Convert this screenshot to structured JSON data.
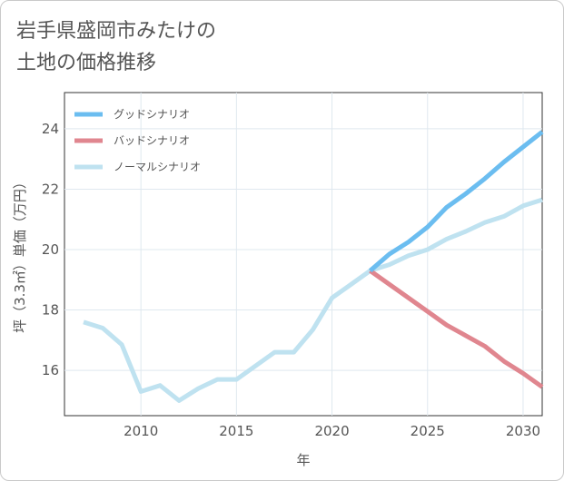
{
  "title": "岩手県盛岡市みたけの\n土地の価格推移",
  "chart_data": {
    "type": "line",
    "title": "岩手県盛岡市みたけの\n土地の価格推移",
    "xlabel": "年",
    "ylabel": "坪（3.3㎡）単価（万円）",
    "xlim": [
      2006,
      2031
    ],
    "ylim": [
      14.5,
      25.2
    ],
    "xticks": [
      2010,
      2015,
      2020,
      2025,
      2030
    ],
    "yticks": [
      16,
      18,
      20,
      22,
      24
    ],
    "legend_position": "top-left",
    "series": [
      {
        "name": "グッドシナリオ",
        "color": "#6bbdf0",
        "x": [
          2022,
          2023,
          2024,
          2025,
          2026,
          2027,
          2028,
          2029,
          2030,
          2031
        ],
        "y": [
          19.3,
          19.85,
          20.25,
          20.75,
          21.4,
          21.85,
          22.35,
          22.9,
          23.4,
          23.9
        ]
      },
      {
        "name": "バッドシナリオ",
        "color": "#e0868f",
        "x": [
          2022,
          2023,
          2024,
          2025,
          2026,
          2027,
          2028,
          2029,
          2030,
          2031
        ],
        "y": [
          19.3,
          18.85,
          18.4,
          17.95,
          17.5,
          17.15,
          16.8,
          16.3,
          15.9,
          15.45
        ]
      },
      {
        "name": "ノーマルシナリオ",
        "color": "#bfe2f0",
        "x": [
          2007,
          2008,
          2009,
          2010,
          2011,
          2012,
          2013,
          2014,
          2015,
          2016,
          2017,
          2018,
          2019,
          2020,
          2021,
          2022,
          2023,
          2024,
          2025,
          2026,
          2027,
          2028,
          2029,
          2030,
          2031
        ],
        "y": [
          17.6,
          17.4,
          16.85,
          15.3,
          15.5,
          15.0,
          15.4,
          15.7,
          15.7,
          16.15,
          16.6,
          16.6,
          17.35,
          18.4,
          18.85,
          19.3,
          19.5,
          19.8,
          20.0,
          20.35,
          20.6,
          20.9,
          21.1,
          21.45,
          21.65
        ]
      }
    ]
  }
}
